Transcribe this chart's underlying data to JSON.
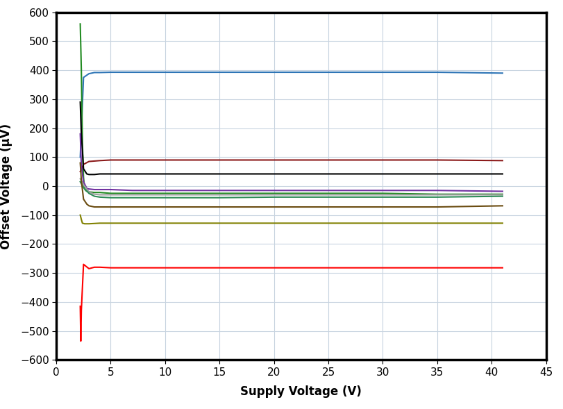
{
  "xlabel": "Supply Voltage (V)",
  "ylabel": "Offset Voltage (μV)",
  "xlim": [
    0,
    45
  ],
  "ylim": [
    -600,
    600
  ],
  "xticks": [
    0,
    5,
    10,
    15,
    20,
    25,
    30,
    35,
    40,
    45
  ],
  "yticks": [
    -600,
    -500,
    -400,
    -300,
    -200,
    -100,
    0,
    100,
    200,
    300,
    400,
    500,
    600
  ],
  "background_color": "#ffffff",
  "plot_bg_color": "#ffffff",
  "grid_color": "#c8d4e0",
  "figsize": [
    8.11,
    5.89
  ],
  "curves": [
    {
      "color": "#2e75b6",
      "x": [
        2.2,
        2.5,
        3.0,
        3.5,
        4.0,
        5.0,
        6.0,
        7.0,
        10.0,
        15.0,
        20.0,
        25.0,
        30.0,
        35.0,
        41.0
      ],
      "y": [
        100,
        375,
        388,
        392,
        392,
        393,
        393,
        393,
        393,
        393,
        393,
        393,
        393,
        393,
        390
      ]
    },
    {
      "color": "#228B22",
      "x": [
        2.2,
        2.3,
        2.4,
        2.5,
        2.6,
        2.7,
        2.8,
        3.0,
        3.5,
        4.0,
        5.0,
        7.0,
        10.0,
        15.0,
        20.0,
        25.0,
        30.0,
        35.0,
        41.0
      ],
      "y": [
        560,
        400,
        150,
        30,
        -10,
        -15,
        -18,
        -20,
        -22,
        -22,
        -25,
        -25,
        -25,
        -25,
        -25,
        -25,
        -25,
        -28,
        -28
      ]
    },
    {
      "color": "#8b1a1a",
      "x": [
        2.2,
        2.5,
        3.0,
        4.0,
        5.0,
        6.0,
        7.0,
        10.0,
        15.0,
        20.0,
        25.0,
        30.0,
        35.0,
        41.0
      ],
      "y": [
        50,
        75,
        85,
        88,
        90,
        90,
        90,
        90,
        90,
        90,
        90,
        90,
        90,
        88
      ]
    },
    {
      "color": "#000000",
      "x": [
        2.2,
        2.3,
        2.5,
        2.8,
        3.0,
        3.5,
        4.0,
        5.0,
        7.0,
        10.0,
        15.0,
        20.0,
        25.0,
        30.0,
        35.0,
        41.0
      ],
      "y": [
        290,
        180,
        60,
        42,
        40,
        40,
        42,
        42,
        42,
        42,
        42,
        42,
        42,
        42,
        42,
        42
      ]
    },
    {
      "color": "#7030a0",
      "x": [
        2.2,
        2.3,
        2.5,
        2.8,
        3.0,
        3.5,
        4.0,
        5.0,
        7.0,
        10.0,
        15.0,
        20.0,
        25.0,
        30.0,
        35.0,
        41.0
      ],
      "y": [
        180,
        70,
        15,
        -8,
        -10,
        -12,
        -12,
        -12,
        -15,
        -15,
        -15,
        -15,
        -15,
        -15,
        -15,
        -18
      ]
    },
    {
      "color": "#a0a0a0",
      "x": [
        2.2,
        2.5,
        3.0,
        3.5,
        4.0,
        5.0,
        7.0,
        10.0,
        15.0,
        20.0,
        25.0,
        30.0,
        35.0,
        41.0
      ],
      "y": [
        25,
        5,
        -20,
        -28,
        -30,
        -30,
        -30,
        -30,
        -30,
        -30,
        -30,
        -30,
        -30,
        -30
      ]
    },
    {
      "color": "#2e8b57",
      "x": [
        2.2,
        2.5,
        3.0,
        3.5,
        4.0,
        5.0,
        7.0,
        10.0,
        15.0,
        20.0,
        25.0,
        30.0,
        35.0,
        41.0
      ],
      "y": [
        15,
        -5,
        -25,
        -35,
        -38,
        -40,
        -40,
        -40,
        -40,
        -38,
        -38,
        -38,
        -38,
        -35
      ]
    },
    {
      "color": "#6b4c11",
      "x": [
        2.2,
        2.3,
        2.5,
        2.8,
        3.0,
        3.5,
        4.0,
        5.0,
        6.0,
        7.0,
        10.0,
        15.0,
        20.0,
        25.0,
        30.0,
        35.0,
        41.0
      ],
      "y": [
        80,
        20,
        -45,
        -62,
        -68,
        -72,
        -72,
        -72,
        -72,
        -72,
        -72,
        -72,
        -72,
        -72,
        -72,
        -72,
        -68
      ]
    },
    {
      "color": "#808000",
      "x": [
        2.2,
        2.3,
        2.4,
        2.6,
        3.0,
        4.0,
        5.0,
        7.0,
        10.0,
        15.0,
        20.0,
        25.0,
        30.0,
        35.0,
        41.0
      ],
      "y": [
        -100,
        -115,
        -128,
        -130,
        -130,
        -128,
        -128,
        -128,
        -128,
        -128,
        -128,
        -128,
        -128,
        -128,
        -128
      ]
    },
    {
      "color": "#ff0000",
      "x": [
        2.2,
        2.25,
        2.3,
        2.5,
        3.0,
        3.5,
        4.0,
        5.0,
        6.0,
        7.0,
        10.0,
        15.0,
        20.0,
        25.0,
        30.0,
        35.0,
        41.0
      ],
      "y": [
        -415,
        -535,
        -430,
        -270,
        -285,
        -280,
        -280,
        -282,
        -282,
        -282,
        -282,
        -282,
        -282,
        -282,
        -282,
        -282,
        -282
      ]
    }
  ]
}
